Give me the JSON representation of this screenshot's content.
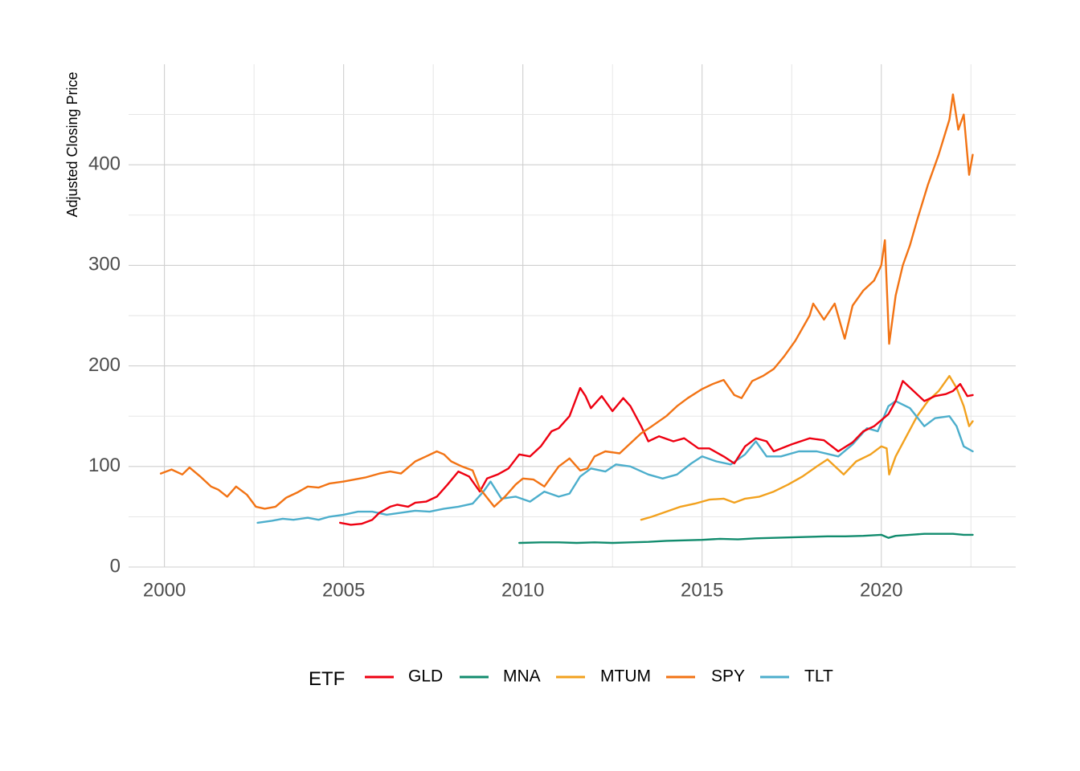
{
  "chart_data": {
    "type": "line",
    "title": "",
    "xlabel": "",
    "ylabel": "Adjusted Closing Price",
    "xlim": [
      1999.0,
      2023.75
    ],
    "ylim": [
      0,
      500
    ],
    "x_ticks": [
      2000,
      2005,
      2010,
      2015,
      2020
    ],
    "x_tick_labels": [
      "2000",
      "2005",
      "2010",
      "2015",
      "2020"
    ],
    "y_ticks": [
      0,
      100,
      200,
      300,
      400
    ],
    "y_tick_labels": [
      "0",
      "100",
      "200",
      "300",
      "400"
    ],
    "grid": true,
    "legend_position": "bottom",
    "legend_title": "ETF",
    "series": [
      {
        "name": "SPY",
        "color": "#F27314",
        "x": [
          1999.9,
          2000.2,
          2000.5,
          2000.7,
          2001.0,
          2001.3,
          2001.5,
          2001.75,
          2002.0,
          2002.3,
          2002.55,
          2002.8,
          2003.1,
          2003.4,
          2003.7,
          2004.0,
          2004.3,
          2004.6,
          2005.0,
          2005.3,
          2005.6,
          2006.0,
          2006.3,
          2006.6,
          2007.0,
          2007.3,
          2007.6,
          2007.8,
          2008.0,
          2008.3,
          2008.6,
          2008.8,
          2009.2,
          2009.5,
          2009.8,
          2010.0,
          2010.3,
          2010.6,
          2011.0,
          2011.3,
          2011.6,
          2011.8,
          2012.0,
          2012.3,
          2012.7,
          2013.0,
          2013.3,
          2013.6,
          2014.0,
          2014.3,
          2014.6,
          2015.0,
          2015.3,
          2015.6,
          2015.9,
          2016.1,
          2016.4,
          2016.7,
          2017.0,
          2017.3,
          2017.6,
          2018.0,
          2018.1,
          2018.4,
          2018.7,
          2018.98,
          2019.2,
          2019.5,
          2019.8,
          2020.0,
          2020.1,
          2020.22,
          2020.4,
          2020.6,
          2020.8,
          2021.0,
          2021.3,
          2021.6,
          2021.9,
          2022.0,
          2022.15,
          2022.3,
          2022.45,
          2022.55
        ],
        "values": [
          93,
          97,
          92,
          99,
          90,
          80,
          77,
          70,
          80,
          72,
          60,
          58,
          60,
          69,
          74,
          80,
          79,
          83,
          85,
          87,
          89,
          93,
          95,
          93,
          105,
          110,
          115,
          112,
          105,
          100,
          96,
          78,
          60,
          70,
          82,
          88,
          87,
          80,
          100,
          108,
          96,
          98,
          110,
          115,
          113,
          123,
          133,
          140,
          150,
          160,
          168,
          177,
          182,
          186,
          171,
          168,
          185,
          190,
          197,
          210,
          225,
          250,
          262,
          246,
          262,
          227,
          260,
          275,
          285,
          300,
          325,
          222,
          270,
          300,
          320,
          345,
          380,
          410,
          445,
          470,
          435,
          450,
          390,
          410
        ]
      },
      {
        "name": "GLD",
        "color": "#EE0011",
        "x": [
          2004.9,
          2005.2,
          2005.5,
          2005.8,
          2006.0,
          2006.3,
          2006.5,
          2006.8,
          2007.0,
          2007.3,
          2007.6,
          2007.9,
          2008.2,
          2008.5,
          2008.8,
          2009.0,
          2009.3,
          2009.6,
          2009.9,
          2010.2,
          2010.5,
          2010.8,
          2011.0,
          2011.3,
          2011.6,
          2011.75,
          2011.9,
          2012.2,
          2012.5,
          2012.8,
          2013.0,
          2013.3,
          2013.5,
          2013.8,
          2014.2,
          2014.5,
          2014.9,
          2015.2,
          2015.6,
          2015.9,
          2016.2,
          2016.5,
          2016.8,
          2017.0,
          2017.5,
          2018.0,
          2018.4,
          2018.8,
          2019.2,
          2019.5,
          2019.8,
          2020.0,
          2020.2,
          2020.4,
          2020.6,
          2020.9,
          2021.2,
          2021.5,
          2021.8,
          2022.0,
          2022.2,
          2022.4,
          2022.55
        ],
        "values": [
          44,
          42,
          43,
          47,
          54,
          60,
          62,
          60,
          64,
          65,
          70,
          82,
          95,
          90,
          75,
          88,
          92,
          98,
          112,
          110,
          120,
          135,
          138,
          150,
          178,
          170,
          158,
          170,
          155,
          168,
          160,
          140,
          125,
          130,
          125,
          128,
          118,
          118,
          110,
          103,
          120,
          128,
          125,
          115,
          122,
          128,
          126,
          115,
          124,
          135,
          140,
          146,
          152,
          165,
          185,
          175,
          165,
          170,
          172,
          175,
          182,
          170,
          171
        ]
      },
      {
        "name": "TLT",
        "color": "#4CAECC",
        "x": [
          2002.6,
          2003.0,
          2003.3,
          2003.6,
          2004.0,
          2004.3,
          2004.6,
          2005.0,
          2005.4,
          2005.8,
          2006.2,
          2006.6,
          2007.0,
          2007.4,
          2007.8,
          2008.2,
          2008.6,
          2008.9,
          2009.1,
          2009.4,
          2009.8,
          2010.2,
          2010.6,
          2011.0,
          2011.3,
          2011.6,
          2011.9,
          2012.3,
          2012.6,
          2013.0,
          2013.5,
          2013.9,
          2014.3,
          2014.7,
          2015.0,
          2015.4,
          2015.8,
          2016.2,
          2016.5,
          2016.8,
          2017.2,
          2017.7,
          2018.2,
          2018.8,
          2019.2,
          2019.6,
          2019.9,
          2020.2,
          2020.4,
          2020.8,
          2021.2,
          2021.5,
          2021.9,
          2022.1,
          2022.3,
          2022.55
        ],
        "values": [
          44,
          46,
          48,
          47,
          49,
          47,
          50,
          52,
          55,
          55,
          52,
          54,
          56,
          55,
          58,
          60,
          63,
          75,
          85,
          68,
          70,
          65,
          75,
          70,
          73,
          90,
          98,
          95,
          102,
          100,
          92,
          88,
          92,
          103,
          110,
          105,
          102,
          112,
          125,
          110,
          110,
          115,
          115,
          110,
          122,
          138,
          135,
          160,
          165,
          158,
          140,
          148,
          150,
          140,
          120,
          115
        ]
      },
      {
        "name": "MTUM",
        "color": "#F2A11E",
        "x": [
          2013.3,
          2013.6,
          2014.0,
          2014.4,
          2014.8,
          2015.2,
          2015.6,
          2015.9,
          2016.2,
          2016.6,
          2017.0,
          2017.4,
          2017.8,
          2018.2,
          2018.5,
          2018.95,
          2019.3,
          2019.7,
          2020.0,
          2020.15,
          2020.22,
          2020.4,
          2020.7,
          2021.0,
          2021.3,
          2021.6,
          2021.9,
          2022.1,
          2022.3,
          2022.45,
          2022.55
        ],
        "values": [
          47,
          50,
          55,
          60,
          63,
          67,
          68,
          64,
          68,
          70,
          75,
          82,
          90,
          100,
          107,
          92,
          105,
          112,
          120,
          118,
          92,
          110,
          130,
          150,
          165,
          175,
          190,
          178,
          160,
          140,
          145
        ]
      },
      {
        "name": "MNA",
        "color": "#128C6E",
        "x": [
          2009.9,
          2010.5,
          2011.0,
          2011.5,
          2012.0,
          2012.5,
          2013.0,
          2013.5,
          2014.0,
          2014.5,
          2015.0,
          2015.5,
          2016.0,
          2016.5,
          2017.0,
          2017.5,
          2018.0,
          2018.5,
          2019.0,
          2019.5,
          2020.0,
          2020.2,
          2020.4,
          2020.8,
          2021.2,
          2021.6,
          2022.0,
          2022.3,
          2022.55
        ],
        "values": [
          24,
          24.5,
          24.5,
          24,
          24.5,
          24,
          24.5,
          25,
          26,
          26.5,
          27,
          28,
          27.5,
          28.5,
          29,
          29.5,
          30,
          30.5,
          30.5,
          31,
          32,
          29,
          31,
          32,
          33,
          33,
          33,
          32,
          32
        ]
      }
    ]
  }
}
